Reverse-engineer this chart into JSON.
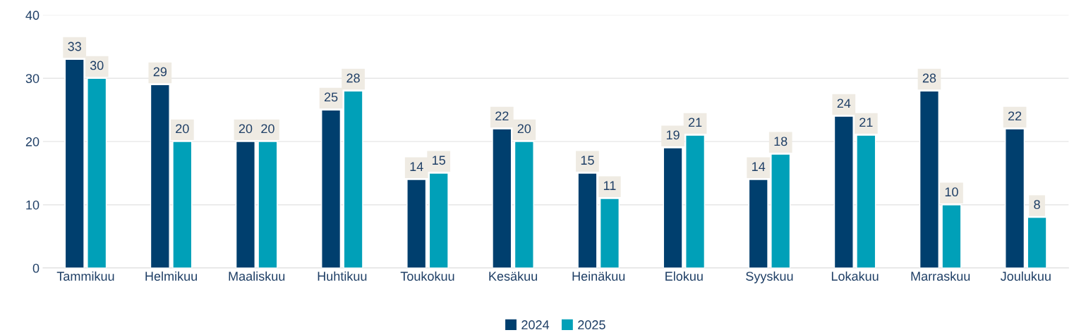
{
  "chart_data": {
    "type": "bar",
    "categories": [
      "Tammikuu",
      "Helmikuu",
      "Maaliskuu",
      "Huhtikuu",
      "Toukokuu",
      "Kesäkuu",
      "Heinäkuu",
      "Elokuu",
      "Syyskuu",
      "Lokakuu",
      "Marraskuu",
      "Joulukuu"
    ],
    "series": [
      {
        "name": "2024",
        "color": "#003f6e",
        "values": [
          33,
          29,
          20,
          25,
          14,
          22,
          15,
          19,
          14,
          24,
          28,
          22
        ]
      },
      {
        "name": "2025",
        "color": "#00a0b8",
        "values": [
          30,
          20,
          20,
          28,
          15,
          20,
          11,
          21,
          18,
          21,
          10,
          8
        ]
      }
    ],
    "ylim": [
      0,
      40
    ],
    "yticks": [
      0,
      10,
      20,
      30,
      40
    ],
    "grid": "y",
    "legend": "bottom",
    "data_labels": true
  }
}
